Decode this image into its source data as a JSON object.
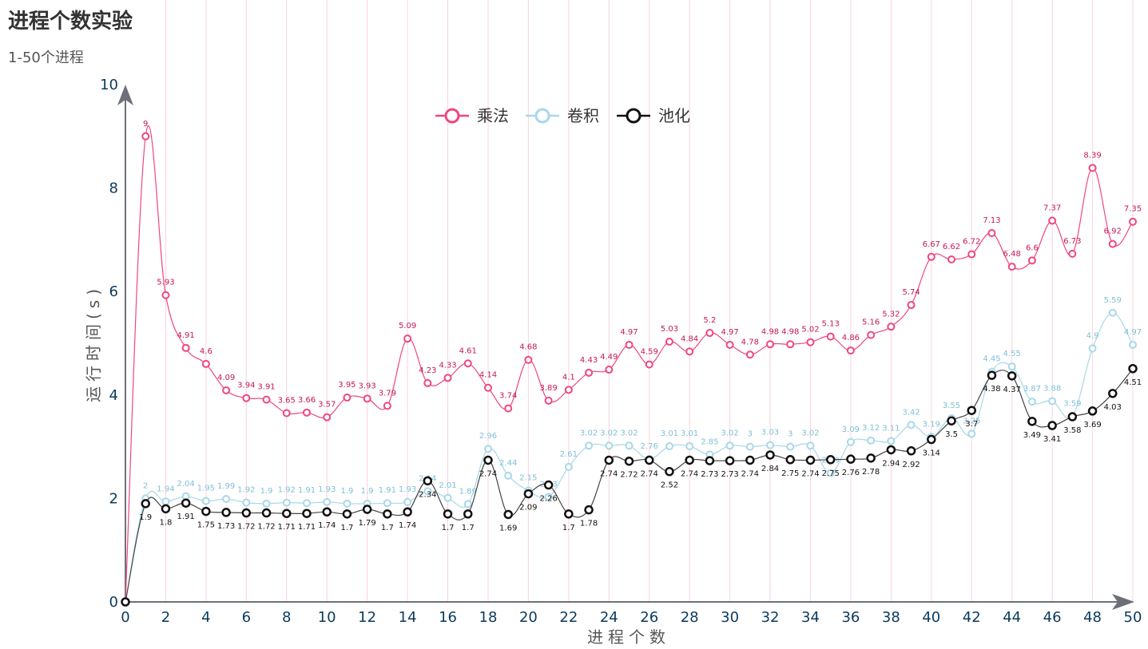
{
  "chart": {
    "title": "进程个数实验",
    "subtitle": "1-50个进程"
  },
  "colors": {
    "multiply": "#f0467f",
    "multiply_label": "#c2185b",
    "conv": "#a8d8e8",
    "conv_label": "#7fbfd6",
    "pool": "#111111",
    "pool_label": "#111111",
    "grid": "#fbd3dc",
    "axis": "#6e7079"
  },
  "chart_data": {
    "type": "line",
    "xlabel": "进程个数",
    "ylabel": "运行时间(s)",
    "xlim": [
      0,
      50
    ],
    "ylim": [
      0,
      10
    ],
    "x_ticks": [
      "0",
      "2",
      "4",
      "6",
      "8",
      "10",
      "12",
      "14",
      "16",
      "18",
      "20",
      "22",
      "24",
      "26",
      "28",
      "30",
      "32",
      "34",
      "36",
      "38",
      "40",
      "42",
      "44",
      "46",
      "48",
      "50"
    ],
    "y_ticks": [
      "0",
      "2",
      "4",
      "6",
      "8",
      "10"
    ],
    "legend_position": "top-center",
    "grid": "vertical",
    "x": [
      0,
      1,
      2,
      3,
      4,
      5,
      6,
      7,
      8,
      9,
      10,
      11,
      12,
      13,
      14,
      15,
      16,
      17,
      18,
      19,
      20,
      21,
      22,
      23,
      24,
      25,
      26,
      27,
      28,
      29,
      30,
      31,
      32,
      33,
      34,
      35,
      36,
      37,
      38,
      39,
      40,
      41,
      42,
      43,
      44,
      45,
      46,
      47,
      48,
      49,
      50
    ],
    "series": [
      {
        "key": "multiply",
        "name": "乘法",
        "values": [
          0,
          9,
          5.93,
          4.91,
          4.6,
          4.09,
          3.94,
          3.91,
          3.65,
          3.66,
          3.57,
          3.95,
          3.93,
          3.79,
          5.09,
          4.23,
          4.33,
          4.61,
          4.14,
          3.74,
          4.68,
          3.89,
          4.1,
          4.43,
          4.49,
          4.97,
          4.59,
          5.03,
          4.84,
          5.2,
          4.97,
          4.78,
          4.98,
          4.98,
          5.02,
          5.13,
          4.86,
          5.16,
          5.32,
          5.74,
          6.67,
          6.62,
          6.72,
          7.13,
          6.48,
          6.6,
          7.37,
          6.73,
          8.39,
          6.92,
          7.35
        ]
      },
      {
        "key": "conv",
        "name": "卷积",
        "values": [
          0,
          2,
          1.94,
          2.04,
          1.95,
          1.99,
          1.92,
          1.9,
          1.92,
          1.91,
          1.93,
          1.9,
          1.9,
          1.91,
          1.93,
          2.14,
          2.01,
          1.89,
          2.96,
          2.44,
          2.15,
          2.03,
          2.61,
          3.02,
          3.02,
          3.02,
          2.76,
          3.01,
          3.01,
          2.85,
          3.02,
          3,
          3.03,
          3,
          3.02,
          2.49,
          3.09,
          3.12,
          3.11,
          3.42,
          3.19,
          3.55,
          3.25,
          4.45,
          4.55,
          3.87,
          3.88,
          3.59,
          4.9,
          5.59,
          4.97
        ]
      },
      {
        "key": "pool",
        "name": "池化",
        "values": [
          0,
          1.9,
          1.8,
          1.91,
          1.75,
          1.73,
          1.72,
          1.72,
          1.71,
          1.71,
          1.74,
          1.7,
          1.79,
          1.7,
          1.74,
          2.34,
          1.7,
          1.7,
          2.74,
          1.69,
          2.09,
          2.26,
          1.7,
          1.78,
          2.74,
          2.72,
          2.74,
          2.52,
          2.74,
          2.73,
          2.73,
          2.74,
          2.84,
          2.75,
          2.74,
          2.75,
          2.76,
          2.78,
          2.94,
          2.92,
          3.14,
          3.5,
          3.7,
          4.38,
          4.37,
          3.49,
          3.41,
          3.58,
          3.69,
          4.03,
          4.51
        ]
      }
    ]
  }
}
